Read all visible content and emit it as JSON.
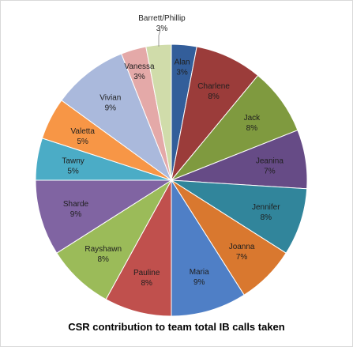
{
  "chart_data": {
    "type": "pie",
    "title": "CSR contribution to team total IB calls taken",
    "start_angle_deg": 0,
    "direction": "clockwise",
    "slices": [
      {
        "label": "Alan",
        "percent_label": "3%",
        "value": 3,
        "color": "#335e9a"
      },
      {
        "label": "Charlene",
        "percent_label": "8%",
        "value": 8,
        "color": "#9b3c3a"
      },
      {
        "label": "Jack",
        "percent_label": "8%",
        "value": 8,
        "color": "#7f9a3f"
      },
      {
        "label": "Jeanina",
        "percent_label": "7%",
        "value": 7,
        "color": "#664b86"
      },
      {
        "label": "Jennifer",
        "percent_label": "8%",
        "value": 8,
        "color": "#31859b"
      },
      {
        "label": "Joanna",
        "percent_label": "7%",
        "value": 7,
        "color": "#d9782f"
      },
      {
        "label": "Maria",
        "percent_label": "9%",
        "value": 9,
        "color": "#4f7fc6"
      },
      {
        "label": "Pauline",
        "percent_label": "8%",
        "value": 8,
        "color": "#c0504d"
      },
      {
        "label": "Rayshawn",
        "percent_label": "8%",
        "value": 8,
        "color": "#9bbb59"
      },
      {
        "label": "Sharde",
        "percent_label": "9%",
        "value": 9,
        "color": "#8064a2"
      },
      {
        "label": "Tawny",
        "percent_label": "5%",
        "value": 5,
        "color": "#4bacc6"
      },
      {
        "label": "Valetta",
        "percent_label": "5%",
        "value": 5,
        "color": "#f79646"
      },
      {
        "label": "Vivian",
        "percent_label": "9%",
        "value": 9,
        "color": "#aab9dc"
      },
      {
        "label": "Vanessa",
        "percent_label": "3%",
        "value": 3,
        "color": "#e4a9a8"
      },
      {
        "label": "Barrett/Phillip",
        "percent_label": "3%",
        "value": 3,
        "color": "#d0dcaa"
      }
    ]
  }
}
